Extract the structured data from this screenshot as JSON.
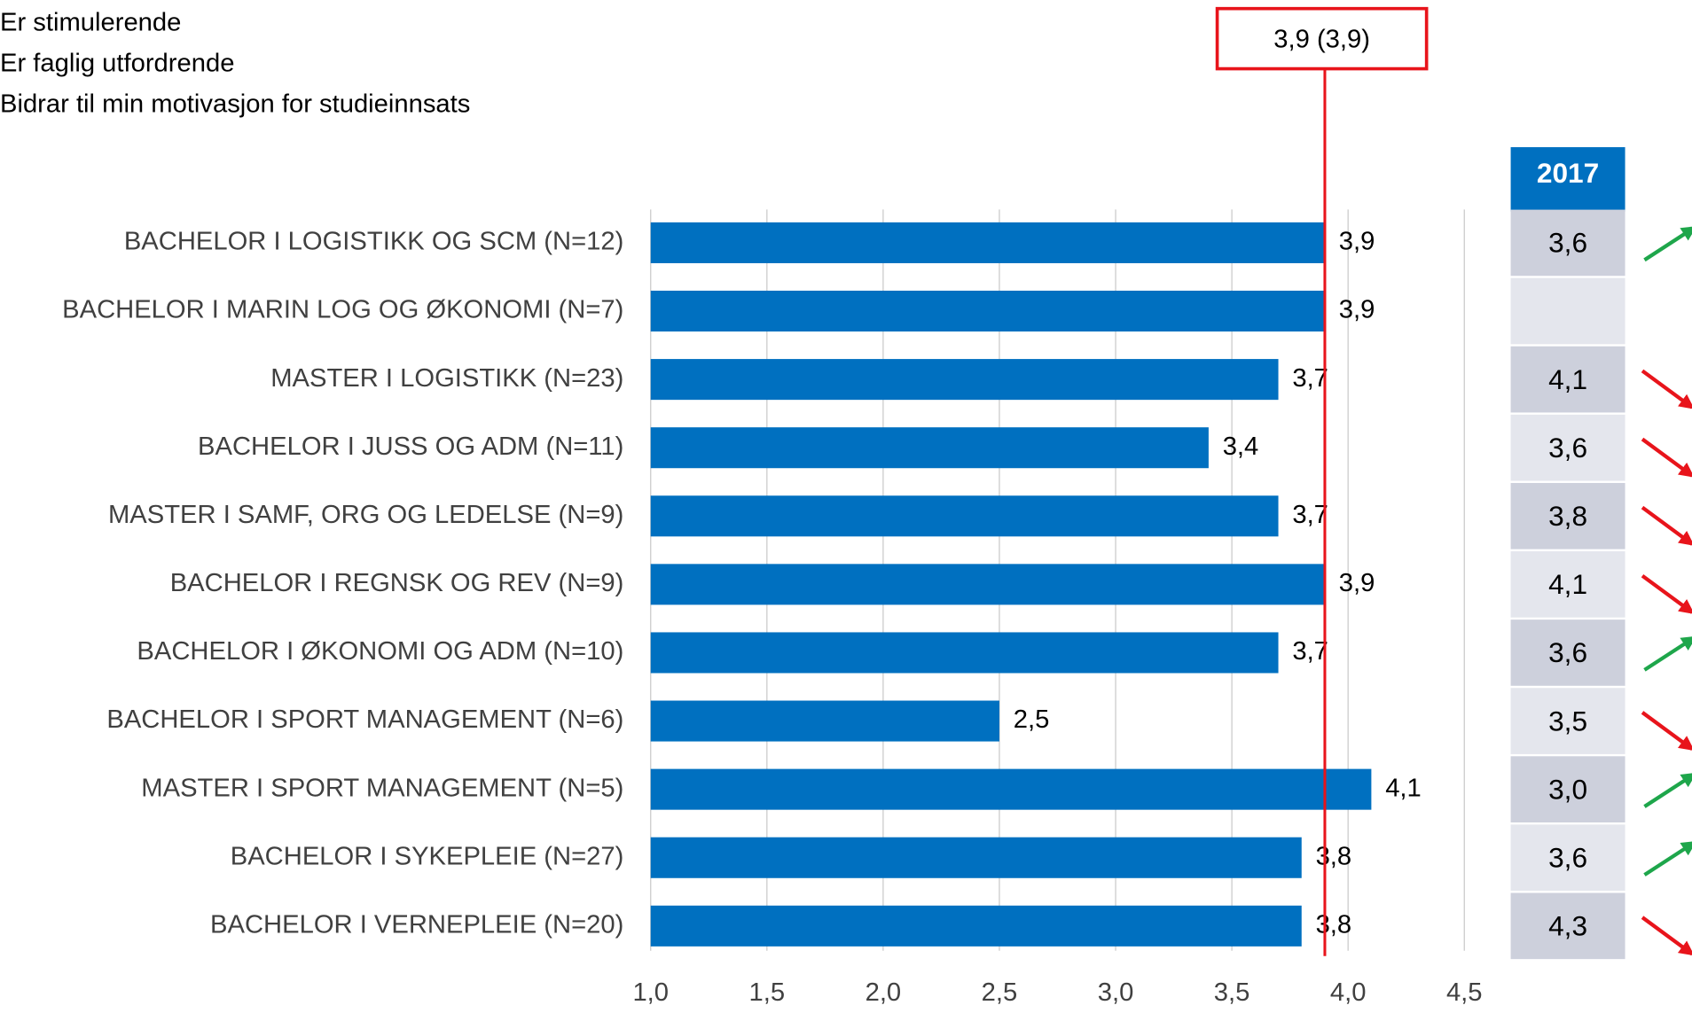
{
  "chart_data": {
    "type": "bar",
    "orientation": "horizontal",
    "subtitle_lines": [
      "Er stimulerende",
      "Er faglig utfordrende",
      "Bidrar til min motivasjon for studieinnsats"
    ],
    "categories": [
      "BACHELOR I LOGISTIKK OG SCM (N=12)",
      "BACHELOR I MARIN LOG OG ØKONOMI (N=7)",
      "MASTER I LOGISTIKK (N=23)",
      "BACHELOR I JUSS OG ADM (N=11) ",
      "MASTER I SAMF, ORG OG LEDELSE (N=9)",
      "BACHELOR I REGNSK OG REV (N=9)",
      "BACHELOR I ØKONOMI OG ADM (N=10)",
      "BACHELOR I SPORT MANAGEMENT (N=6)",
      "MASTER I SPORT MANAGEMENT (N=5)",
      "BACHELOR I SYKEPLEIE (N=27)",
      "BACHELOR I VERNEPLEIE (N=20)"
    ],
    "values": [
      3.9,
      3.9,
      3.7,
      3.4,
      3.7,
      3.9,
      3.7,
      2.5,
      4.1,
      3.8,
      3.8
    ],
    "value_labels": [
      "3,9",
      "3,9",
      "3,7",
      "3,4",
      "3,7",
      "3,9",
      "3,7",
      "2,5",
      "4,1",
      "3,8",
      "3,8"
    ],
    "color": "#0070c0",
    "xlim": [
      1.0,
      4.5
    ],
    "xticks": [
      {
        "value": 1.0,
        "label": "1,0"
      },
      {
        "value": 1.5,
        "label": "1,5"
      },
      {
        "value": 2.0,
        "label": "2,0"
      },
      {
        "value": 2.5,
        "label": "2,5"
      },
      {
        "value": 3.0,
        "label": "3,0"
      },
      {
        "value": 3.5,
        "label": "3,5"
      },
      {
        "value": 4.0,
        "label": "4,0"
      },
      {
        "value": 4.5,
        "label": "4,5"
      }
    ],
    "grid": true,
    "reference": {
      "value": 3.9,
      "label": "3,9 (3,9)",
      "color": "#e8141b"
    },
    "previous": {
      "header": "2017",
      "values": [
        3.6,
        null,
        4.1,
        3.6,
        3.8,
        4.1,
        3.6,
        3.5,
        3.0,
        3.6,
        4.3
      ],
      "value_labels": [
        "3,6",
        null,
        "4,1",
        "3,6",
        "3,8",
        "4,1",
        "3,6",
        "3,5",
        "3,0",
        "3,6",
        "4,3"
      ],
      "trend": [
        "up",
        null,
        "down",
        "down",
        "down",
        "down",
        "up",
        "down",
        "up",
        "up",
        "down"
      ],
      "up_color": "#1ea64b",
      "down_color": "#e8141b"
    }
  }
}
